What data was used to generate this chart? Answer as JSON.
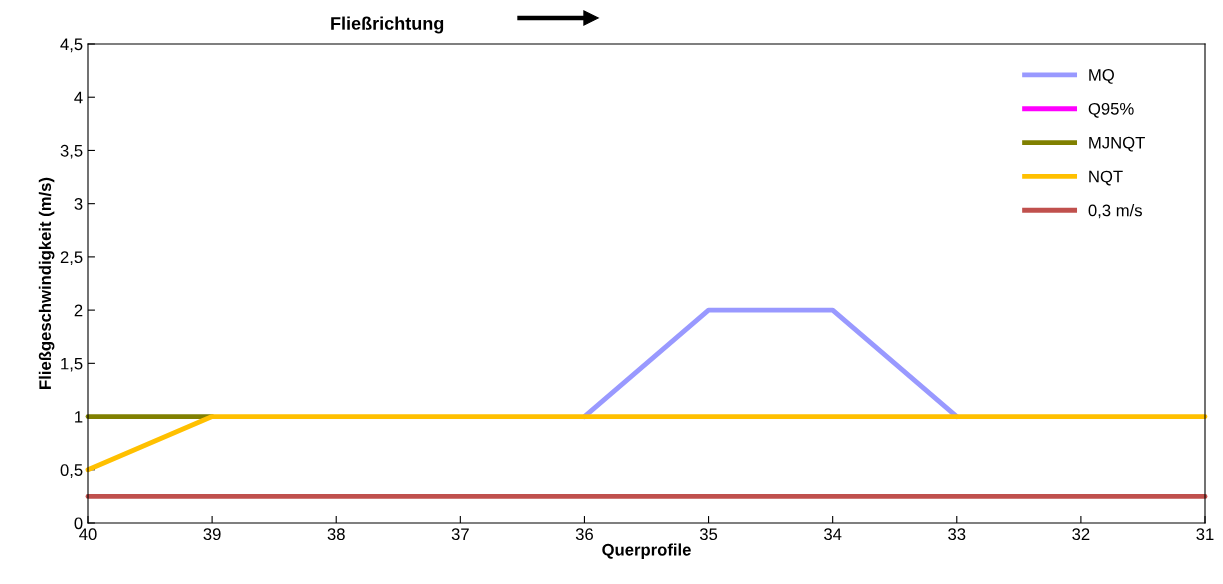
{
  "chart_data": {
    "type": "line",
    "title": "Fließrichtung",
    "xlabel": "Querprofile",
    "ylabel": "Fließgeschwindigkeit (m/s)",
    "x": [
      40,
      39,
      38,
      37,
      36,
      35,
      34,
      33,
      32,
      31
    ],
    "series": [
      {
        "name": "MQ",
        "color": "#9999ff",
        "values": [
          null,
          null,
          null,
          null,
          1,
          2,
          2,
          1,
          null,
          null
        ]
      },
      {
        "name": "Q95%",
        "color": "#ff00ff",
        "values": [
          null,
          null,
          null,
          null,
          null,
          null,
          null,
          null,
          null,
          null
        ]
      },
      {
        "name": "MJNQT",
        "color": "#808000",
        "values": [
          1,
          1,
          null,
          null,
          null,
          null,
          null,
          null,
          null,
          null
        ]
      },
      {
        "name": "NQT",
        "color": "#ffc000",
        "values": [
          0.5,
          1,
          1,
          1,
          1,
          1,
          1,
          1,
          1,
          1
        ]
      },
      {
        "name": "0,3 m/s",
        "color": "#c0504d",
        "values": [
          0.25,
          0.25,
          0.25,
          0.25,
          0.25,
          0.25,
          0.25,
          0.25,
          0.25,
          0.25
        ]
      }
    ],
    "xlim": [
      40,
      31
    ],
    "xticks": [
      40,
      39,
      38,
      37,
      36,
      35,
      34,
      33,
      32,
      31
    ],
    "ylim": [
      0,
      4.5
    ],
    "yticks": [
      {
        "value": 0,
        "label": "0"
      },
      {
        "value": 0.5,
        "label": "0,5"
      },
      {
        "value": 1,
        "label": "1"
      },
      {
        "value": 1.5,
        "label": "1,5"
      },
      {
        "value": 2,
        "label": "2"
      },
      {
        "value": 2.5,
        "label": "2,5"
      },
      {
        "value": 3,
        "label": "3"
      },
      {
        "value": 3.5,
        "label": "3,5"
      },
      {
        "value": 4,
        "label": "4"
      },
      {
        "value": 4.5,
        "label": "4,5"
      }
    ],
    "grid": false,
    "legend": "top right",
    "marker": "none",
    "line_style": "solid"
  }
}
